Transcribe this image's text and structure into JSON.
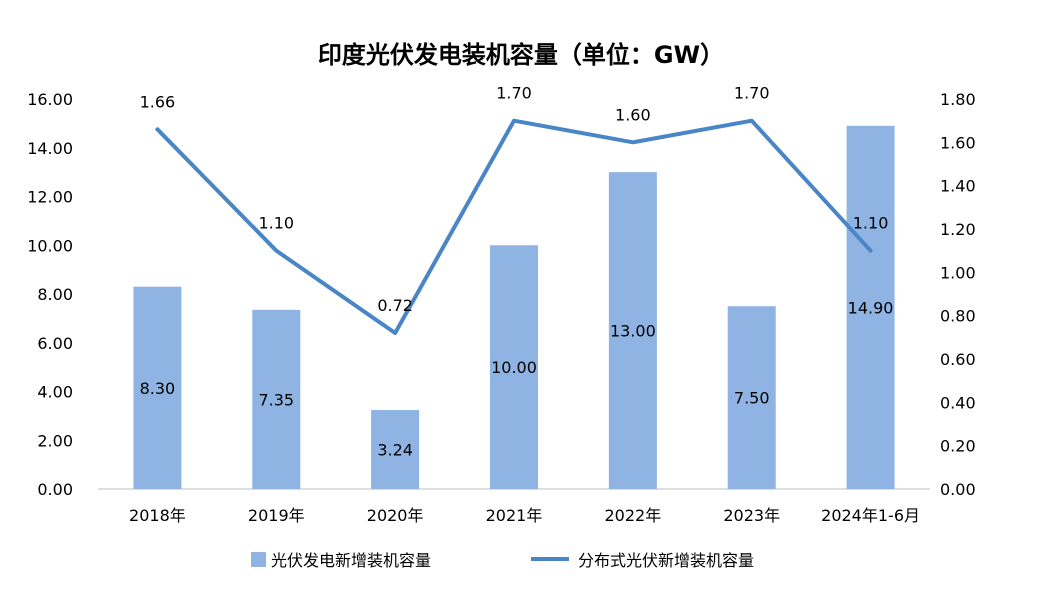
{
  "chart_data": {
    "type": "bar+line",
    "title": "印度光伏发电装机容量（单位：GW）",
    "categories": [
      "2018年",
      "2019年",
      "2020年",
      "2021年",
      "2022年",
      "2023年",
      "2024年1-6月"
    ],
    "series": [
      {
        "name": "光伏发电新增装机容量",
        "type": "bar",
        "axis": "left",
        "color": "#8fb4e3",
        "values": [
          8.3,
          7.35,
          3.24,
          10.0,
          13.0,
          7.5,
          14.9
        ],
        "labels": [
          "8.30",
          "7.35",
          "3.24",
          "10.00",
          "13.00",
          "7.50",
          "14.90"
        ]
      },
      {
        "name": "分布式光伏新增装机容量",
        "type": "line",
        "axis": "right",
        "color": "#4a86c5",
        "values": [
          1.66,
          1.1,
          0.72,
          1.7,
          1.6,
          1.7,
          1.1
        ],
        "labels": [
          "1.66",
          "1.10",
          "0.72",
          "1.70",
          "1.60",
          "1.70",
          "1.10"
        ]
      }
    ],
    "y_left": {
      "min": 0,
      "max": 16,
      "ticks": [
        "0.00",
        "2.00",
        "4.00",
        "6.00",
        "8.00",
        "10.00",
        "12.00",
        "14.00",
        "16.00"
      ]
    },
    "y_right": {
      "min": 0,
      "max": 1.8,
      "ticks": [
        "0.00",
        "0.20",
        "0.40",
        "0.60",
        "0.80",
        "1.00",
        "1.20",
        "1.40",
        "1.60",
        "1.80"
      ]
    },
    "grid": false,
    "legend_position": "bottom"
  }
}
